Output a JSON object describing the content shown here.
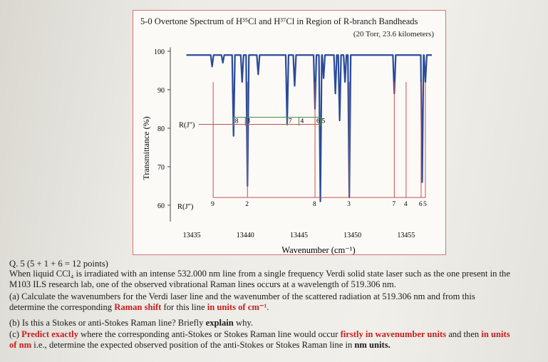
{
  "chart_data": {
    "type": "line",
    "title": "5-0 Overtone Spectrum of H³⁵Cl and H³⁷Cl in Region of R-branch Bandheads",
    "subtitle": "(20 Torr, 23.6 kilometers)",
    "xlabel": "Wavenumber (cm⁻¹)",
    "ylabel": "Transmittance (%)",
    "xlim": [
      13433,
      13458
    ],
    "ylim": [
      55,
      102
    ],
    "xticks": [
      13435,
      13440,
      13445,
      13450,
      13455
    ],
    "yticks": [
      100,
      90,
      80,
      70,
      60
    ],
    "baseline": 99,
    "series": [
      {
        "name": "spectrum",
        "color": "#2a4a9a",
        "lines": [
          {
            "x": 13436.9,
            "min": 96
          },
          {
            "x": 13437.9,
            "min": 97
          },
          {
            "x": 13438.9,
            "min": 78
          },
          {
            "x": 13439.7,
            "min": 92
          },
          {
            "x": 13440.2,
            "min": 65
          },
          {
            "x": 13441.2,
            "min": 94
          },
          {
            "x": 13443.9,
            "min": 81
          },
          {
            "x": 13444.6,
            "min": 91
          },
          {
            "x": 13446.5,
            "min": 85
          },
          {
            "x": 13447.0,
            "min": 61
          },
          {
            "x": 13447.3,
            "min": 93
          },
          {
            "x": 13448.4,
            "min": 89
          },
          {
            "x": 13448.8,
            "min": 82
          },
          {
            "x": 13449.3,
            "min": 92
          },
          {
            "x": 13449.7,
            "min": 62
          },
          {
            "x": 13453.9,
            "min": 89
          },
          {
            "x": 13456.5,
            "min": 66
          },
          {
            "x": 13456.8,
            "min": 92
          }
        ]
      }
    ],
    "annotations": {
      "upper_label": "R(J\")",
      "lower_label": "R(J\")",
      "upper_bracket_y": 81,
      "lower_bracket_y": 62,
      "upper_lines": [
        {
          "label": "8",
          "x": 13438.9
        },
        {
          "label": "3",
          "x": 13440.0
        },
        {
          "label": "7",
          "x": 13443.9
        },
        {
          "label": "4",
          "x": 13445.0
        },
        {
          "label": "6",
          "x": 13446.5
        },
        {
          "label": "5",
          "x": 13447.0
        }
      ],
      "lower_lines": [
        {
          "label": "9",
          "x": 13437.0
        },
        {
          "label": "2",
          "x": 13440.2
        },
        {
          "label": "8",
          "x": 13446.5
        },
        {
          "label": "3",
          "x": 13449.7
        },
        {
          "label": "7",
          "x": 13453.9
        },
        {
          "label": "4",
          "x": 13455.0
        },
        {
          "label": "6",
          "x": 13456.4
        },
        {
          "label": "5",
          "x": 13456.8
        }
      ]
    }
  },
  "question": {
    "header": "Q. 5 (5 + 1 + 6 = 12 points)",
    "intro_1": "When liquid CCl₄ is irradiated with an intense 532.000 nm line from a single frequency Verdi solid state laser such as the one present in the",
    "intro_2": "M103 ILS research lab, one of the observed vibrational Raman lines occurs at a wavelength of 519.306 nm.",
    "a_1": "(a) Calculate the wavenumbers for the Verdi laser line and the wavenumber of the scattered radiation at 519.306 nm and from this",
    "a_2_pre": "determine the corresponding ",
    "a_2_red1": "Raman shift",
    "a_2_mid": " for this line ",
    "a_2_red2": "in units of cm⁻¹",
    "a_2_post": ".",
    "b_pre": "(b) Is this a Stokes or anti-Stokes Raman line? Briefly ",
    "b_bold": "explain",
    "b_post": " why.",
    "c_1_pre": "(c) ",
    "c_1_red1": "Predict exactly",
    "c_1_mid": " where the corresponding anti-Stokes or Stokes Raman line would occur ",
    "c_1_red2": "firstly in wavenumber units",
    "c_1_and": " and then ",
    "c_1_red3": "in units",
    "c_2_red": "of nm",
    "c_2_mid": " i.e., determine the expected observed position of the anti-Stokes or Stokes Raman line in ",
    "c_2_bold": "nm units."
  }
}
